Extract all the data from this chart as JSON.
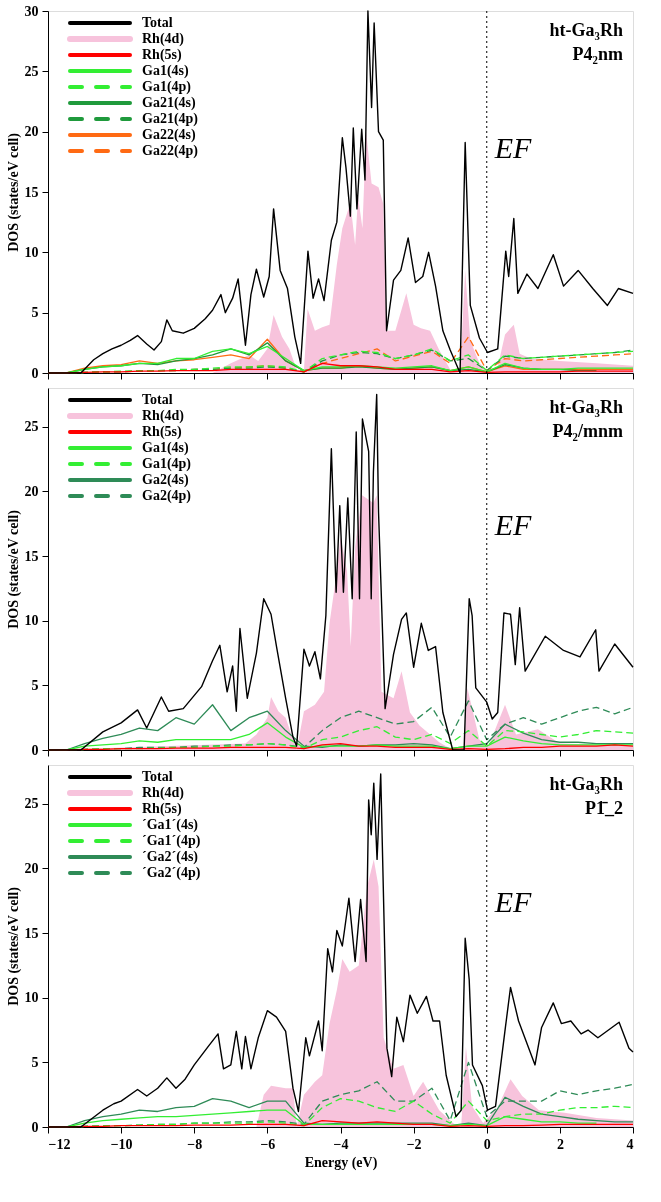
{
  "chart_data": [
    {
      "type": "line",
      "ylabel": "DOS (states/eV cell)",
      "annotations": [
        "ht-Ga₃Rh",
        "P4₂nm"
      ],
      "legend": "top left",
      "grid": false,
      "tick_labels": "y",
      "xlim": [
        -12,
        4
      ],
      "xticks": [
        -12,
        -10,
        -8,
        -6,
        -4,
        -2,
        0,
        2,
        4
      ],
      "ylim": [
        0,
        30
      ],
      "yticks": [
        0,
        5,
        10,
        15,
        20,
        25,
        30
      ],
      "ref_lines": [
        {
          "axis": "x",
          "value": 0,
          "label": "EF",
          "line_style": "dotted",
          "color": "#000000"
        }
      ],
      "x": [
        -12,
        -11.5,
        -11,
        -10.5,
        -10,
        -9.5,
        -9,
        -8.5,
        -8,
        -7.5,
        -7,
        -6.5,
        -6,
        -5.5,
        -5,
        -4.5,
        -4,
        -3.5,
        -3,
        -2.5,
        -2,
        -1.5,
        -1,
        -0.5,
        0,
        0.5,
        1,
        1.5,
        2,
        2.5,
        3,
        3.5,
        4
      ],
      "series": [
        {
          "name": "Total",
          "color": "#000000",
          "type": "line",
          "line_style": "solid",
          "x": [
            -12,
            -11.1,
            -10.75,
            -10.5,
            -10.25,
            -10,
            -9.75,
            -9.55,
            -9.3,
            -9.1,
            -8.9,
            -8.75,
            -8.6,
            -8.3,
            -8,
            -7.7,
            -7.5,
            -7.27,
            -7.15,
            -6.95,
            -6.8,
            -6.6,
            -6.45,
            -6.3,
            -6.1,
            -5.95,
            -5.83,
            -5.65,
            -5.45,
            -5.25,
            -5.09,
            -4.89,
            -4.75,
            -4.6,
            -4.45,
            -4.25,
            -4.1,
            -3.95,
            -3.85,
            -3.73,
            -3.65,
            -3.55,
            -3.42,
            -3.33,
            -3.25,
            -3.15,
            -3.08,
            -2.96,
            -2.83,
            -2.74,
            -2.55,
            -2.35,
            -2.15,
            -1.95,
            -1.75,
            -1.59,
            -1.4,
            -1.2,
            -1.0,
            -0.73,
            -0.59,
            -0.45,
            -0.2,
            0.02,
            0.3,
            0.52,
            0.6,
            0.74,
            0.85,
            1.1,
            1.4,
            1.82,
            2.1,
            2.5,
            2.9,
            3.3,
            3.6,
            4
          ],
          "values": [
            0,
            0,
            1.1,
            1.6,
            2.0,
            2.3,
            2.7,
            3.1,
            2.4,
            1.9,
            2.6,
            4.4,
            3.5,
            3.3,
            3.7,
            4.5,
            5.2,
            6.5,
            5.0,
            6.2,
            7.8,
            2.3,
            6.5,
            8.6,
            6.3,
            8.0,
            13.6,
            8.5,
            7.0,
            3.0,
            0.8,
            10.1,
            6.2,
            7.8,
            6.0,
            11.0,
            12.5,
            19.5,
            17,
            13,
            20.3,
            13.6,
            20.2,
            16,
            30,
            22,
            29,
            20,
            19.3,
            3.5,
            7.7,
            8.5,
            11.2,
            7.5,
            8.0,
            10,
            7.2,
            3.5,
            1.9,
            0,
            19.1,
            5.6,
            2.9,
            1.7,
            2.0,
            10.1,
            8,
            12.8,
            6.6,
            8.2,
            7.0,
            9.8,
            7.2,
            8.5,
            7.0,
            5.6,
            7.0,
            6.6
          ]
        },
        {
          "name": "Rh(4d)",
          "color": "#f7c3dc",
          "type": "area",
          "x": [
            -12,
            -7.5,
            -7,
            -6.5,
            -6.25,
            -6,
            -5.83,
            -5.6,
            -5.4,
            -5.2,
            -5.0,
            -4.9,
            -4.7,
            -4.5,
            -4.3,
            -4.1,
            -3.95,
            -3.73,
            -3.6,
            -3.52,
            -3.4,
            -3.3,
            -3.15,
            -2.96,
            -2.83,
            -2.74,
            -2.5,
            -2.2,
            -2.0,
            -1.8,
            -1.55,
            -1.3,
            -1.0,
            -0.73,
            -0.59,
            -0.45,
            -0.2,
            0,
            0.3,
            0.5,
            0.74,
            0.9,
            1.2,
            2,
            3,
            4
          ],
          "values": [
            0,
            0,
            0.8,
            1.5,
            1.0,
            2.0,
            4.8,
            3.0,
            2.0,
            0.3,
            0.2,
            5.3,
            3.5,
            3.8,
            4.0,
            9.0,
            12,
            14.1,
            10.6,
            14.6,
            12,
            20,
            15.7,
            15.4,
            14,
            3.5,
            3.5,
            6.6,
            4.0,
            3.7,
            3.5,
            1.9,
            0.3,
            0,
            8.5,
            2.7,
            0.8,
            0.3,
            0.5,
            3.2,
            4.0,
            1.6,
            1.2,
            1.0,
            0.8,
            0.6
          ]
        },
        {
          "name": "Rh(5s)",
          "color": "#ff0000",
          "type": "line",
          "line_style": "solid",
          "values": [
            0,
            0,
            0.05,
            0.1,
            0.1,
            0.15,
            0.15,
            0.2,
            0.2,
            0.2,
            0.3,
            0.3,
            0.3,
            0.3,
            0.1,
            0.8,
            0.6,
            0.6,
            0.5,
            0.3,
            0.3,
            0.3,
            0.1,
            0.2,
            0.05,
            0.1,
            0.1,
            0.1,
            0.1,
            0.15,
            0.15,
            0.15,
            0.15
          ]
        },
        {
          "name": "Ga1(4s)",
          "color": "#33ee33",
          "type": "line",
          "line_style": "solid",
          "values": [
            0,
            0,
            0.3,
            0.5,
            0.6,
            0.8,
            0.8,
            1.2,
            1.2,
            1.8,
            2.0,
            1.6,
            2.2,
            1.2,
            0.2,
            0.5,
            0.5,
            0.6,
            0.5,
            0.4,
            0.5,
            0.6,
            0.2,
            0.5,
            0.1,
            0.8,
            0.4,
            0.3,
            0.3,
            0.4,
            0.4,
            0.4,
            0.4
          ]
        },
        {
          "name": "Ga1(4p)",
          "color": "#33ee33",
          "type": "line",
          "line_style": "dashed",
          "values": [
            0,
            0,
            0.05,
            0.1,
            0.15,
            0.2,
            0.2,
            0.3,
            0.3,
            0.4,
            0.5,
            0.5,
            0.6,
            0.5,
            0.1,
            1.2,
            1.5,
            1.8,
            1.7,
            1.2,
            1.5,
            2.0,
            1.0,
            1.5,
            0.2,
            1.5,
            1.2,
            1.3,
            1.4,
            1.5,
            1.6,
            1.7,
            1.8
          ]
        },
        {
          "name": "Ga21(4s)",
          "color": "#1f9a3c",
          "type": "line",
          "line_style": "solid",
          "values": [
            0,
            0,
            0.3,
            0.5,
            0.6,
            0.8,
            0.7,
            1.0,
            1.2,
            1.5,
            2.0,
            1.5,
            2.5,
            1.0,
            0.2,
            0.4,
            0.4,
            0.5,
            0.4,
            0.3,
            0.4,
            0.5,
            0.2,
            0.3,
            0.1,
            0.7,
            0.4,
            0.3,
            0.3,
            0.2,
            0.2,
            null,
            null
          ]
        },
        {
          "name": "Ga21(4p)",
          "color": "#1f9a3c",
          "type": "line",
          "line_style": "dashed",
          "values": [
            0,
            0,
            0.05,
            0.1,
            0.1,
            0.15,
            0.2,
            0.2,
            0.3,
            0.3,
            0.4,
            0.4,
            0.5,
            0.4,
            0.1,
            1.0,
            1.5,
            1.7,
            1.6,
            1.2,
            1.5,
            1.9,
            1.0,
            1.2,
            0.2,
            1.4,
            1.2,
            1.3,
            1.4,
            1.5,
            1.6,
            1.7,
            1.9
          ]
        },
        {
          "name": "Ga22(4s)",
          "color": "#ff6a13",
          "type": "line",
          "line_style": "solid",
          "values": [
            0,
            0,
            0.4,
            0.6,
            0.7,
            1.0,
            0.8,
            1.0,
            1.1,
            1.3,
            1.5,
            1.2,
            2.8,
            1.0,
            0.2,
            0.4,
            0.4,
            0.6,
            0.4,
            0.3,
            0.4,
            0.5,
            0.2,
            0.5,
            0.1,
            0.6,
            0.3,
            0.3,
            0.3,
            0.3,
            0.3,
            0.3,
            0.3
          ]
        },
        {
          "name": "Ga22(4p)",
          "color": "#ff6a13",
          "type": "line",
          "line_style": "dashed",
          "values": [
            0,
            0,
            0.05,
            0.1,
            0.1,
            0.15,
            0.2,
            0.2,
            0.3,
            0.3,
            0.4,
            0.5,
            0.6,
            0.4,
            0.1,
            0.8,
            1.2,
            1.6,
            2.0,
            1.0,
            1.4,
            1.8,
            0.8,
            3.0,
            0.2,
            1.2,
            1.0,
            1.1,
            1.2,
            1.3,
            1.4,
            1.5,
            1.6
          ]
        }
      ]
    },
    {
      "type": "line",
      "ylabel": "DOS (states/eV cell)",
      "annotations": [
        "ht-Ga₃Rh",
        "P4₂/mnm"
      ],
      "legend": "top left",
      "grid": false,
      "tick_labels": "y",
      "xlim": [
        -12,
        4
      ],
      "xticks": [
        -12,
        -10,
        -8,
        -6,
        -4,
        -2,
        0,
        2,
        4
      ],
      "ylim": [
        0,
        28
      ],
      "yticks": [
        0,
        5,
        10,
        15,
        20,
        25
      ],
      "ref_lines": [
        {
          "axis": "x",
          "value": 0,
          "label": "EF",
          "line_style": "dotted",
          "color": "#000000"
        }
      ],
      "x": [
        -12,
        -11.5,
        -11,
        -10.5,
        -10,
        -9.5,
        -9,
        -8.5,
        -8,
        -7.5,
        -7,
        -6.5,
        -6,
        -5.5,
        -5,
        -4.5,
        -4,
        -3.5,
        -3,
        -2.5,
        -2,
        -1.5,
        -1,
        -0.5,
        0,
        0.5,
        1,
        1.5,
        2,
        2.5,
        3,
        3.5,
        4
      ],
      "series": [
        {
          "name": "Total",
          "color": "#000000",
          "type": "line",
          "line_style": "solid",
          "x": [
            -12,
            -11.1,
            -10.5,
            -10,
            -9.55,
            -9.3,
            -8.9,
            -8.7,
            -8.3,
            -7.8,
            -7.5,
            -7.3,
            -7.1,
            -6.95,
            -6.85,
            -6.75,
            -6.55,
            -6.3,
            -6.1,
            -5.9,
            -5.75,
            -5.5,
            -5.3,
            -5.2,
            -5.0,
            -4.85,
            -4.7,
            -4.55,
            -4.4,
            -4.25,
            -4.12,
            -4.02,
            -3.92,
            -3.8,
            -3.68,
            -3.57,
            -3.48,
            -3.4,
            -3.23,
            -3.16,
            -3.1,
            -3.01,
            -2.96,
            -2.78,
            -2.55,
            -2.33,
            -2.2,
            -2.0,
            -1.79,
            -1.6,
            -1.4,
            -1.2,
            -0.93,
            -0.62,
            -0.48,
            -0.4,
            -0.3,
            0,
            0.15,
            0.3,
            0.47,
            0.65,
            0.78,
            0.9,
            1.05,
            1.6,
            2.1,
            2.55,
            2.98,
            3.07,
            3.5,
            4
          ],
          "values": [
            0,
            0,
            1.4,
            2.1,
            3.1,
            1.7,
            4.1,
            3.0,
            3.2,
            4.9,
            6.9,
            8.1,
            4.5,
            6.5,
            3.0,
            9.4,
            4.0,
            7.5,
            11.7,
            10.5,
            8.0,
            4.0,
            1.0,
            0.3,
            7.8,
            6.5,
            7.6,
            5.5,
            10.4,
            23.3,
            12.2,
            18.9,
            12.2,
            19.5,
            11.7,
            24.6,
            11.7,
            25.6,
            23.1,
            11.7,
            21.5,
            27.5,
            18.4,
            3.2,
            7.4,
            10.1,
            10.6,
            6.4,
            9.8,
            7.7,
            8.0,
            2.9,
            0,
            0,
            11.7,
            10.4,
            4.8,
            3.7,
            2.4,
            2.9,
            10.6,
            10.5,
            6.6,
            11.0,
            6.1,
            8.8,
            7.7,
            7.2,
            9.3,
            6.1,
            8.2,
            6.4
          ]
        },
        {
          "name": "Rh(4d)",
          "color": "#f7c3dc",
          "type": "area",
          "x": [
            -12,
            -6.6,
            -6.3,
            -6.0,
            -5.9,
            -5.7,
            -5.5,
            -5.2,
            -5.0,
            -4.7,
            -4.45,
            -4.3,
            -4.1,
            -4.0,
            -3.82,
            -3.72,
            -3.6,
            -3.41,
            -3.1,
            -3.01,
            -2.88,
            -2.55,
            -2.33,
            -2.1,
            -1.84,
            -1.3,
            -0.93,
            -0.62,
            -0.53,
            -0.2,
            0.05,
            0.5,
            0.8,
            1.4,
            2,
            3,
            4
          ],
          "values": [
            0,
            0.5,
            1.2,
            2.5,
            4.1,
            3.0,
            2.5,
            0,
            3.0,
            3.5,
            4.5,
            9.8,
            13.8,
            16.5,
            13.8,
            8,
            15.7,
            19.7,
            19.1,
            19.7,
            4.5,
            4.0,
            6.1,
            2.9,
            1.9,
            0.6,
            0,
            0,
            4.8,
            0.8,
            0.3,
            3.5,
            1.2,
            1.6,
            0.5,
            0.4,
            0.3
          ]
        },
        {
          "name": "Rh(5s)",
          "color": "#ff0000",
          "type": "line",
          "line_style": "solid",
          "values": [
            0,
            0,
            0.05,
            0.05,
            0.1,
            0.1,
            0.1,
            0.15,
            0.15,
            0.15,
            0.2,
            0.2,
            0.2,
            0.2,
            0.1,
            0.4,
            0.5,
            0.3,
            0.3,
            0.2,
            0.2,
            0.2,
            0.05,
            0.1,
            0.05,
            0.1,
            0.2,
            0.2,
            0.3,
            0.3,
            0.3,
            0.4,
            0.3
          ]
        },
        {
          "name": "Ga1(4s)",
          "color": "#33ee33",
          "type": "line",
          "line_style": "solid",
          "values": [
            0,
            0,
            0.3,
            0.4,
            0.5,
            0.7,
            0.6,
            0.8,
            0.8,
            0.8,
            0.8,
            1.2,
            2.1,
            1.0,
            0.2,
            0.3,
            0.3,
            0.3,
            0.4,
            0.3,
            0.3,
            0.3,
            0.1,
            0.3,
            0.3,
            1.0,
            0.7,
            0.5,
            0.4,
            0.4,
            0.4,
            0.4,
            0.4
          ]
        },
        {
          "name": "Ga1(4p)",
          "color": "#33ee33",
          "type": "line",
          "line_style": "dashed",
          "values": [
            0,
            0,
            0.05,
            0.1,
            0.1,
            0.1,
            0.15,
            0.2,
            0.2,
            0.3,
            0.3,
            0.4,
            0.5,
            0.4,
            0.1,
            0.8,
            1.0,
            1.5,
            1.8,
            1.0,
            0.8,
            1.2,
            0.5,
            1.5,
            0.3,
            1.5,
            1.4,
            1.2,
            1.0,
            1.2,
            1.5,
            1.4,
            1.3
          ]
        },
        {
          "name": "Ga2(4s)",
          "color": "#2e8b57",
          "type": "line",
          "line_style": "solid",
          "values": [
            0,
            0,
            0.5,
            0.9,
            1.2,
            1.7,
            1.5,
            2.5,
            2.0,
            3.5,
            1.5,
            2.5,
            3.0,
            1.5,
            0.3,
            0.2,
            0.4,
            0.3,
            0.4,
            0.4,
            0.5,
            0.4,
            0.1,
            0.3,
            0.5,
            2.0,
            1.3,
            0.8,
            0.6,
            0.6,
            0.5,
            0.5,
            0.5
          ]
        },
        {
          "name": "Ga2(4p)",
          "color": "#2e8b57",
          "type": "line",
          "line_style": "dashed",
          "values": [
            0,
            0,
            0.05,
            0.1,
            0.1,
            0.2,
            0.2,
            0.2,
            0.3,
            0.3,
            0.4,
            0.4,
            0.5,
            0.4,
            0.2,
            1.5,
            2.5,
            3.0,
            2.5,
            2.0,
            2.2,
            3.3,
            1.0,
            3.8,
            0.8,
            2.0,
            2.5,
            2.0,
            2.5,
            3.0,
            3.3,
            2.8,
            3.3
          ]
        }
      ]
    },
    {
      "type": "line",
      "xlabel": "Energy (eV)",
      "ylabel": "DOS (states/eV cell)",
      "annotations": [
        "ht-Ga₃Rh",
        "P1̄_2"
      ],
      "legend": "top left",
      "grid": false,
      "xlim": [
        -12,
        4
      ],
      "xticks": [
        -12,
        -10,
        -8,
        -6,
        -4,
        -2,
        0,
        2,
        4
      ],
      "ylim": [
        0,
        28
      ],
      "yticks": [
        0,
        5,
        10,
        15,
        20,
        25
      ],
      "ref_lines": [
        {
          "axis": "x",
          "value": 0,
          "label": "EF",
          "line_style": "dotted",
          "color": "#000000"
        }
      ],
      "x": [
        -12,
        -11.5,
        -11,
        -10.5,
        -10,
        -9.5,
        -9,
        -8.5,
        -8,
        -7.5,
        -7,
        -6.5,
        -6,
        -5.5,
        -5,
        -4.5,
        -4,
        -3.5,
        -3,
        -2.5,
        -2,
        -1.5,
        -1,
        -0.5,
        0,
        0.5,
        1,
        1.5,
        2,
        2.5,
        3,
        3.5,
        4
      ],
      "series": [
        {
          "name": "Total",
          "color": "#000000",
          "type": "line",
          "line_style": "solid",
          "x": [
            -12,
            -11.1,
            -10.5,
            -10.2,
            -10,
            -9.55,
            -9.3,
            -9,
            -8.75,
            -8.5,
            -8.25,
            -8.0,
            -7.6,
            -7.35,
            -7.2,
            -7.0,
            -6.85,
            -6.7,
            -6.6,
            -6.45,
            -6.25,
            -6.0,
            -5.75,
            -5.5,
            -5.3,
            -5.15,
            -4.95,
            -4.85,
            -4.6,
            -4.5,
            -4.35,
            -4.22,
            -4.1,
            -3.95,
            -3.77,
            -3.6,
            -3.45,
            -3.3,
            -3.23,
            -3.16,
            -3.09,
            -3.0,
            -2.9,
            -2.73,
            -2.6,
            -2.46,
            -2.28,
            -2.1,
            -1.9,
            -1.65,
            -1.47,
            -1.29,
            -1.11,
            -0.84,
            -0.7,
            -0.59,
            -0.48,
            -0.39,
            -0.12,
            0.02,
            0.24,
            0.51,
            0.65,
            0.87,
            1.32,
            1.5,
            1.82,
            2.04,
            2.3,
            2.58,
            2.77,
            3.04,
            3.62,
            3.89,
            4
          ],
          "values": [
            0,
            0,
            1.3,
            1.8,
            2.0,
            2.9,
            2.4,
            3.0,
            3.8,
            3.0,
            3.7,
            4.8,
            6.3,
            7.2,
            4.5,
            4.8,
            7.4,
            4.5,
            7.0,
            4.5,
            6.9,
            9.0,
            8.5,
            7.4,
            3.0,
            1.2,
            6.9,
            5.5,
            8.2,
            5.9,
            13.8,
            12,
            15.2,
            14,
            17.7,
            12.8,
            17.6,
            12.8,
            25.3,
            22.6,
            26.6,
            20.7,
            27.3,
            6.1,
            3.9,
            8.5,
            6.6,
            10.2,
            8.8,
            10.1,
            8.2,
            8.2,
            4,
            0.8,
            1.3,
            14.6,
            11.4,
            4.8,
            3.2,
            1.3,
            1.6,
            7.7,
            10.8,
            8.2,
            4.8,
            7.7,
            9.6,
            8.0,
            8.2,
            7.2,
            7.5,
            6.9,
            8.1,
            6.1,
            5.8
          ]
        },
        {
          "name": "Rh(4d)",
          "color": "#f7c3dc",
          "type": "area",
          "x": [
            -12,
            -6.3,
            -6.1,
            -5.9,
            -5.5,
            -5.3,
            -5.2,
            -5.0,
            -4.7,
            -4.5,
            -4.3,
            -4.1,
            -3.95,
            -3.75,
            -3.5,
            -3.27,
            -3.09,
            -2.96,
            -2.82,
            -2.55,
            -2.28,
            -2.0,
            -1.74,
            -1.3,
            -0.84,
            -0.7,
            -0.57,
            -0.4,
            -0.1,
            0.3,
            0.65,
            0.97,
            1.43,
            2.13,
            3,
            4
          ],
          "values": [
            0,
            0,
            2.5,
            3.2,
            3.0,
            3.0,
            0,
            2.5,
            3.5,
            4.0,
            8.0,
            10.6,
            13.0,
            12,
            12.5,
            18.6,
            20.7,
            18.6,
            6.9,
            4.5,
            4.8,
            2.4,
            3.5,
            1.3,
            0.1,
            0,
            6.2,
            1.6,
            0.3,
            1.5,
            3.7,
            2.4,
            1.3,
            1.1,
            0.7,
            0.5
          ]
        },
        {
          "name": "Rh(5s)",
          "color": "#ff0000",
          "type": "line",
          "line_style": "solid",
          "values": [
            0,
            0,
            0.05,
            0.05,
            0.1,
            0.1,
            0.1,
            0.1,
            0.15,
            0.15,
            0.15,
            0.2,
            0.2,
            0.2,
            0.1,
            0.5,
            0.4,
            0.3,
            0.4,
            0.3,
            0.2,
            0.2,
            0.05,
            0.1,
            0.05,
            0.1,
            0.1,
            0.15,
            0.2,
            0.2,
            0.2,
            0.2,
            0.2
          ]
        },
        {
          "name": "´Ga1´(4s)",
          "color": "#33ee33",
          "type": "line",
          "line_style": "solid",
          "values": [
            0,
            0,
            0.3,
            0.5,
            0.6,
            0.7,
            0.8,
            0.8,
            0.9,
            1.0,
            1.1,
            1.2,
            1.3,
            1.3,
            0.2,
            0.2,
            0.2,
            0.2,
            0.2,
            0.2,
            0.2,
            0.2,
            0.1,
            0.2,
            0.1,
            0.8,
            0.6,
            0.4,
            0.4,
            0.3,
            0.3,
            null,
            null
          ]
        },
        {
          "name": "´Ga1´(4p)",
          "color": "#33ee33",
          "type": "line",
          "line_style": "dashed",
          "values": [
            0,
            0,
            0.05,
            0.1,
            0.1,
            0.15,
            0.2,
            0.2,
            0.3,
            0.3,
            0.3,
            0.3,
            0.4,
            0.3,
            0.1,
            1.5,
            2.2,
            2.0,
            1.5,
            1.2,
            2.0,
            1.0,
            0.3,
            2.0,
            0.5,
            0.8,
            1.0,
            1.0,
            1.3,
            1.5,
            1.5,
            1.6,
            1.5
          ]
        },
        {
          "name": "´Ga2´(4s)",
          "color": "#2e8b57",
          "type": "line",
          "line_style": "solid",
          "values": [
            0,
            0,
            0.5,
            0.8,
            1.0,
            1.3,
            1.2,
            1.5,
            1.6,
            2.2,
            2.0,
            1.5,
            2.0,
            2.0,
            0.3,
            0.2,
            0.3,
            0.3,
            0.3,
            0.3,
            0.3,
            0.3,
            0.1,
            0.3,
            0.1,
            2.3,
            1.6,
            1.0,
            0.8,
            0.6,
            0.5,
            0.4,
            0.4
          ]
        },
        {
          "name": "´Ga2´(4p)",
          "color": "#2e8b57",
          "type": "line",
          "line_style": "dashed",
          "values": [
            0,
            0,
            0.05,
            0.1,
            0.1,
            0.15,
            0.2,
            0.2,
            0.3,
            0.3,
            0.4,
            0.4,
            0.5,
            0.4,
            0.2,
            2.0,
            2.5,
            2.8,
            3.5,
            2.0,
            2.0,
            3.0,
            0.5,
            5.0,
            0.8,
            2.0,
            2.0,
            2.0,
            2.8,
            2.5,
            2.8,
            3.0,
            3.3
          ]
        }
      ]
    }
  ]
}
